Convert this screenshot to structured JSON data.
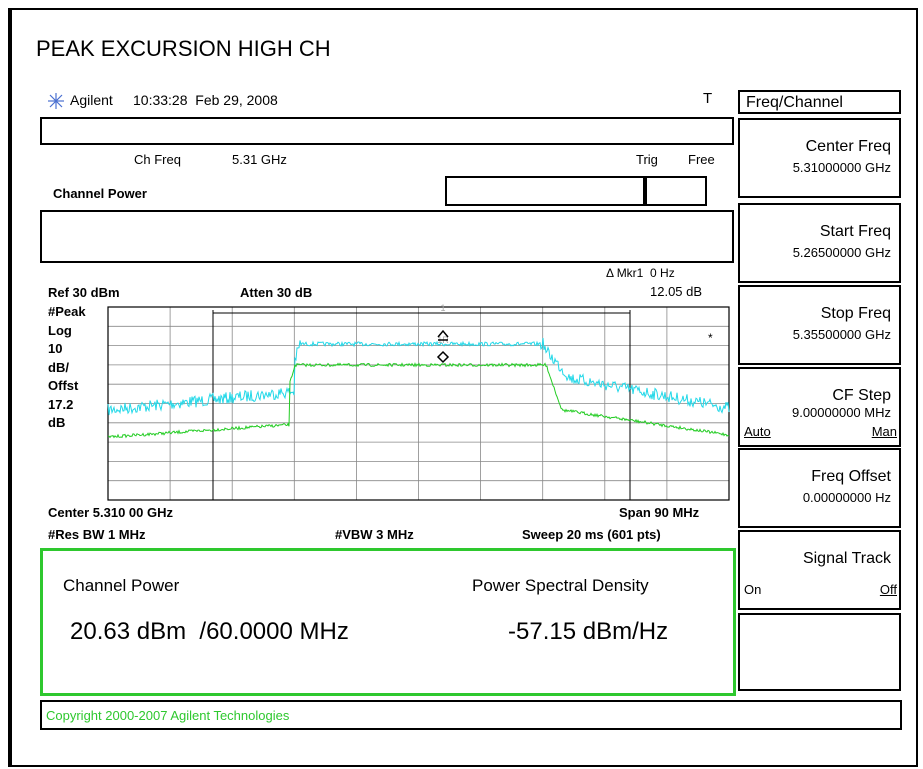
{
  "title": "PEAK EXCURSION HIGH CH",
  "header": {
    "brand": "Agilent",
    "timestamp": "10:33:28  Feb 29, 2008",
    "flag": "T"
  },
  "status": {
    "ch_freq_label": "Ch Freq",
    "ch_freq": "5.31 GHz",
    "trig_label": "Trig",
    "trig": "Free",
    "mode": "Channel Power"
  },
  "marker": {
    "label": "Δ Mkr1  0 Hz",
    "value": "12.05 dB",
    "symbols": [
      "1",
      "1R",
      "*"
    ]
  },
  "display": {
    "ref": "Ref 30 dBm",
    "atten": "Atten 30 dB",
    "left_labels": [
      "#Peak",
      "Log",
      "10",
      "dB/",
      "Offst",
      "17.2",
      "dB"
    ],
    "center": "Center 5.310 00 GHz",
    "span": "Span 90 MHz",
    "res_bw": "#Res BW 1 MHz",
    "vbw": "#VBW 3 MHz",
    "sweep": "Sweep 20 ms (601 pts)"
  },
  "results": {
    "power_label": "Channel Power",
    "power_value": "20.63 dBm  /60.0000 MHz",
    "psd_label": "Power Spectral Density",
    "psd_value": "-57.15 dBm/Hz"
  },
  "softkeys": {
    "menu": "Freq/Channel",
    "keys": [
      {
        "label": "Center Freq",
        "value": "5.31000000 GHz"
      },
      {
        "label": "Start Freq",
        "value": "5.26500000 GHz"
      },
      {
        "label": "Stop Freq",
        "value": "5.35500000 GHz"
      },
      {
        "label": "CF Step",
        "value": "9.00000000 MHz",
        "options": [
          "Auto",
          "Man"
        ]
      },
      {
        "label": "Freq Offset",
        "value": "0.00000000  Hz"
      },
      {
        "label": "Signal Track",
        "options": [
          "On",
          "Off"
        ]
      }
    ]
  },
  "copyright": "Copyright 2000-2007 Agilent Technologies"
}
